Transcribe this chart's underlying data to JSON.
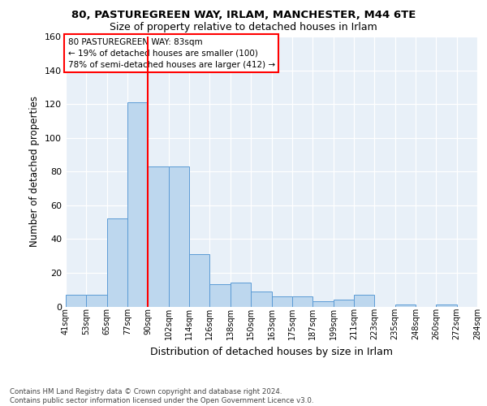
{
  "title_line1": "80, PASTUREGREEN WAY, IRLAM, MANCHESTER, M44 6TE",
  "title_line2": "Size of property relative to detached houses in Irlam",
  "xlabel": "Distribution of detached houses by size in Irlam",
  "ylabel": "Number of detached properties",
  "bin_labels": [
    "41sqm",
    "53sqm",
    "65sqm",
    "77sqm",
    "90sqm",
    "102sqm",
    "114sqm",
    "126sqm",
    "138sqm",
    "150sqm",
    "163sqm",
    "175sqm",
    "187sqm",
    "199sqm",
    "211sqm",
    "223sqm",
    "235sqm",
    "248sqm",
    "260sqm",
    "272sqm",
    "284sqm"
  ],
  "bar_heights": [
    7,
    7,
    52,
    121,
    83,
    83,
    31,
    13,
    14,
    9,
    6,
    6,
    3,
    4,
    7,
    0,
    1,
    0,
    1,
    0
  ],
  "bar_color": "#BDD7EE",
  "bar_edge_color": "#5B9BD5",
  "property_size": 83,
  "pct_smaller": 19,
  "n_smaller": 100,
  "pct_larger_semi": 78,
  "n_larger_semi": 412,
  "ylim": [
    0,
    160
  ],
  "yticks": [
    0,
    20,
    40,
    60,
    80,
    100,
    120,
    140,
    160
  ],
  "background_color": "#E8F0F8",
  "footer_line1": "Contains HM Land Registry data © Crown copyright and database right 2024.",
  "footer_line2": "Contains public sector information licensed under the Open Government Licence v3.0."
}
